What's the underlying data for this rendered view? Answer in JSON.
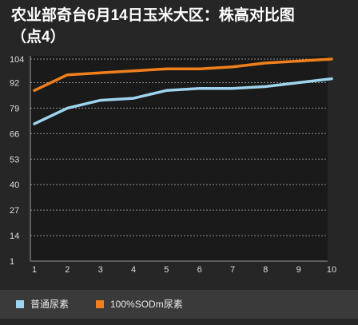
{
  "title_line1": "农业部奇台6月14日玉米大区：株高对比图",
  "title_line2": "（点4）",
  "colors": {
    "background": "#262626",
    "plot_background": "#1a1a1a",
    "grid": "#8a8a8a",
    "series1": "#9fd4ee",
    "series2": "#f07f1c"
  },
  "chart_data": {
    "type": "line",
    "title": "农业部奇台6月14日玉米大区：株高对比图（点4）",
    "x": [
      1,
      2,
      3,
      4,
      5,
      6,
      7,
      8,
      9,
      10
    ],
    "yticks": [
      1,
      14,
      27,
      40,
      53,
      66,
      79,
      92,
      104
    ],
    "ylim": [
      1,
      104
    ],
    "grid": true,
    "legend_position": "bottom",
    "series": [
      {
        "name": "普通尿素",
        "color": "#9fd4ee",
        "values": [
          71,
          79,
          83,
          84,
          88,
          89,
          89,
          90,
          92,
          94
        ]
      },
      {
        "name": "100%SODm尿素",
        "color": "#f07f1c",
        "values": [
          88,
          96,
          97,
          98,
          99,
          99,
          100,
          102,
          103,
          104
        ]
      }
    ]
  }
}
